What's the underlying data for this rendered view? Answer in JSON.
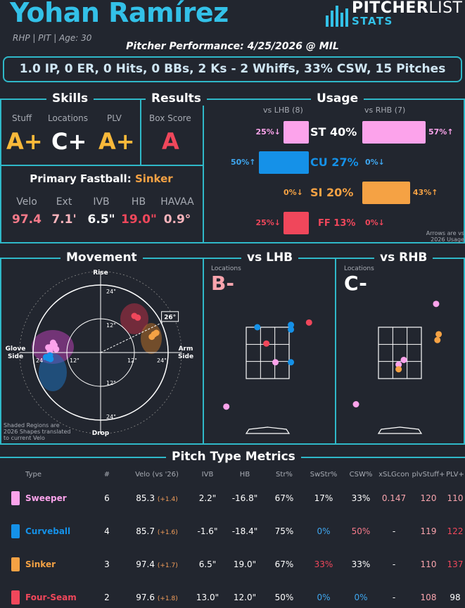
{
  "header": {
    "name": "Yohan Ramírez",
    "meta": "RHP | PIT | Age: 30",
    "performance": "Pitcher Performance: 4/25/2026 @ MIL",
    "statline": "1.0 IP, 0 ER, 0 Hits, 0 BBs, 2 Ks - 2 Whiffs, 33% CSW, 15 Pitches",
    "logo_top_bold": "PITCHER",
    "logo_top_light": "LIST",
    "logo_bottom": "STATS"
  },
  "skills": {
    "title": "Skills",
    "items": [
      {
        "label": "Stuff",
        "grade": "A+",
        "color": "#f9b93a"
      },
      {
        "label": "Locations",
        "grade": "C+",
        "color": "#ffffff"
      },
      {
        "label": "PLV",
        "grade": "A+",
        "color": "#f9b93a"
      }
    ]
  },
  "results": {
    "title": "Results",
    "label": "Box Score",
    "grade": "A",
    "color": "#f0475b"
  },
  "fastball": {
    "title": "Primary Fastball:",
    "pitch": "Sinker",
    "stats": [
      {
        "label": "Velo",
        "value": "97.4",
        "color": "#f77a8a"
      },
      {
        "label": "Ext",
        "value": "7.1'",
        "color": "#f9b4bc"
      },
      {
        "label": "IVB",
        "value": "6.5\"",
        "color": "#ffffff"
      },
      {
        "label": "HB",
        "value": "19.0\"",
        "color": "#f0475b"
      },
      {
        "label": "HAVAA",
        "value": "0.9°",
        "color": "#f9b4bc"
      }
    ]
  },
  "usage": {
    "title": "Usage",
    "lhb_label": "vs LHB (8)",
    "rhb_label": "vs RHB (7)",
    "note_line1": "Arrows are vs",
    "note_line2": "2026 Usage",
    "rows": [
      {
        "pitch": "ST 40%",
        "color": "#fca3eb",
        "lhb": 25,
        "rhb": 57,
        "lhb_text": "25%↓",
        "rhb_text": "57%↑",
        "lhb_color": "#fca3eb",
        "rhb_color": "#fca3eb"
      },
      {
        "pitch": "CU 27%",
        "color": "#1591e8",
        "lhb": 50,
        "rhb": 0,
        "lhb_text": "50%↑",
        "rhb_text": "0%↓",
        "lhb_color": "#3fa7f0",
        "rhb_color": "#3fa7f0"
      },
      {
        "pitch": "SI 20%",
        "color": "#f5a244",
        "lhb": 0,
        "rhb": 43,
        "lhb_text": "0%↓",
        "rhb_text": "43%↑",
        "lhb_color": "#f5a244",
        "rhb_color": "#f5a244"
      },
      {
        "pitch": "FF 13%",
        "color": "#f0475b",
        "lhb": 25,
        "rhb": 0,
        "lhb_text": "25%↓",
        "rhb_text": "0%↓",
        "lhb_color": "#f0475b",
        "rhb_color": "#f0475b"
      }
    ]
  },
  "movement": {
    "title": "Movement",
    "rise": "Rise",
    "drop": "Drop",
    "glove_1": "Glove",
    "glove_2": "Side",
    "arm_1": "Arm",
    "arm_2": "Side",
    "angle": "26°",
    "ring_labels": [
      "24\"",
      "12\"",
      "12\"",
      "24\"",
      "24\"",
      "12\"",
      "12\"",
      "24\""
    ],
    "note_1": "Shaded Regions are",
    "note_2": "2026 Shapes translated",
    "note_3": "to current Velo"
  },
  "locations": {
    "lhb": {
      "title": "vs LHB",
      "label": "Locations",
      "grade": "B-",
      "grade_color": "#f9a4ad"
    },
    "rhb": {
      "title": "vs RHB",
      "label": "Locations",
      "grade": "C-",
      "grade_color": "#ffffff"
    }
  },
  "chart_data": [
    {
      "type": "scatter",
      "title": "Movement",
      "xlabel": "",
      "ylabel": "",
      "xlim": [
        -30,
        30
      ],
      "ylim": [
        -30,
        30
      ],
      "series": [
        {
          "name": "Sweeper",
          "color": "#fca3eb",
          "points": [
            [
              -17.6,
              2.0
            ],
            [
              -16.4,
              2.6
            ],
            [
              -15.8,
              1.2
            ],
            [
              -18.0,
              0.6
            ],
            [
              -16.9,
              3.5
            ],
            [
              -18.6,
              1.8
            ]
          ]
        },
        {
          "name": "Curveball",
          "color": "#1591e8",
          "points": [
            [
              -19.4,
              -1.6
            ],
            [
              -18.6,
              -2.0
            ],
            [
              -18.0,
              -1.0
            ],
            [
              -17.8,
              -2.3
            ]
          ]
        },
        {
          "name": "Sinker",
          "color": "#f5a244",
          "points": [
            [
              19.0,
              6.5
            ],
            [
              18.2,
              5.6
            ],
            [
              19.8,
              7.0
            ]
          ]
        },
        {
          "name": "Four-Seam",
          "color": "#f0475b",
          "points": [
            [
              12.0,
              13.0
            ],
            [
              13.2,
              12.4
            ]
          ]
        }
      ]
    },
    {
      "type": "scatter",
      "title": "vs LHB",
      "xlim": [
        -2.5,
        2.5
      ],
      "ylim": [
        -0.5,
        5.5
      ],
      "series": [
        {
          "name": "Sweeper",
          "color": "#fca3eb",
          "points": [
            [
              0.3,
              2.1
            ],
            [
              -1.6,
              0.2
            ]
          ]
        },
        {
          "name": "Curveball",
          "color": "#1591e8",
          "points": [
            [
              -0.4,
              3.6
            ],
            [
              0.9,
              3.7
            ],
            [
              0.9,
              3.5
            ],
            [
              0.9,
              2.1
            ]
          ]
        },
        {
          "name": "Four-Seam",
          "color": "#f0475b",
          "points": [
            [
              -0.05,
              2.9
            ],
            [
              1.6,
              3.8
            ]
          ]
        }
      ]
    },
    {
      "type": "scatter",
      "title": "vs RHB",
      "xlim": [
        -2.5,
        2.5
      ],
      "ylim": [
        -0.5,
        5.5
      ],
      "series": [
        {
          "name": "Sweeper",
          "color": "#fca3eb",
          "points": [
            [
              0.15,
              2.2
            ],
            [
              -0.05,
              2.0
            ],
            [
              1.4,
              4.6
            ],
            [
              -1.7,
              0.3
            ]
          ]
        },
        {
          "name": "Sinker",
          "color": "#f5a244",
          "points": [
            [
              -0.05,
              1.8
            ],
            [
              1.5,
              3.3
            ],
            [
              1.45,
              3.05
            ]
          ]
        }
      ]
    },
    {
      "type": "table",
      "title": "Pitch Type Metrics",
      "columns": [
        "Type",
        "#",
        "Velo (vs '26)",
        "IVB",
        "HB",
        "Str%",
        "SwStr%",
        "CSW%",
        "xSLGcon",
        "plvStuff+",
        "PLV+"
      ],
      "rows": [
        {
          "color": "#fca3eb",
          "type": "Sweeper",
          "n": "6",
          "velo": "85.3",
          "delta": "(+1.4)",
          "ivb": "2.2\"",
          "hb": "-16.8\"",
          "str": "67%",
          "swstr": "17%",
          "csw": "33%",
          "xslg": "0.147",
          "stuff": "120",
          "plv": "110",
          "c_swstr": "#ffffff",
          "c_csw": "#ffffff",
          "c_xslg": "#f9a4ad",
          "c_stuff": "#f9a4ad",
          "c_plv": "#f9a4ad"
        },
        {
          "color": "#1591e8",
          "type": "Curveball",
          "n": "4",
          "velo": "85.7",
          "delta": "(+1.6)",
          "ivb": "-1.6\"",
          "hb": "-18.4\"",
          "str": "75%",
          "swstr": "0%",
          "csw": "50%",
          "xslg": "-",
          "stuff": "119",
          "plv": "122",
          "c_swstr": "#3fa7f0",
          "c_csw": "#f77a8a",
          "c_xslg": "#ffffff",
          "c_stuff": "#f9a4ad",
          "c_plv": "#f0475b"
        },
        {
          "color": "#f5a244",
          "type": "Sinker",
          "n": "3",
          "velo": "97.4",
          "delta": "(+1.7)",
          "ivb": "6.5\"",
          "hb": "19.0\"",
          "str": "67%",
          "swstr": "33%",
          "csw": "33%",
          "xslg": "-",
          "stuff": "110",
          "plv": "137",
          "c_swstr": "#f0475b",
          "c_csw": "#ffffff",
          "c_xslg": "#ffffff",
          "c_stuff": "#f9a4ad",
          "c_plv": "#f0475b"
        },
        {
          "color": "#f0475b",
          "type": "Four-Seam",
          "n": "2",
          "velo": "97.6",
          "delta": "(+1.8)",
          "ivb": "13.0\"",
          "hb": "12.0\"",
          "str": "50%",
          "swstr": "0%",
          "csw": "0%",
          "xslg": "-",
          "stuff": "108",
          "plv": "98",
          "c_swstr": "#3fa7f0",
          "c_csw": "#3fa7f0",
          "c_xslg": "#ffffff",
          "c_stuff": "#f9a4ad",
          "c_plv": "#ffffff"
        }
      ]
    }
  ]
}
